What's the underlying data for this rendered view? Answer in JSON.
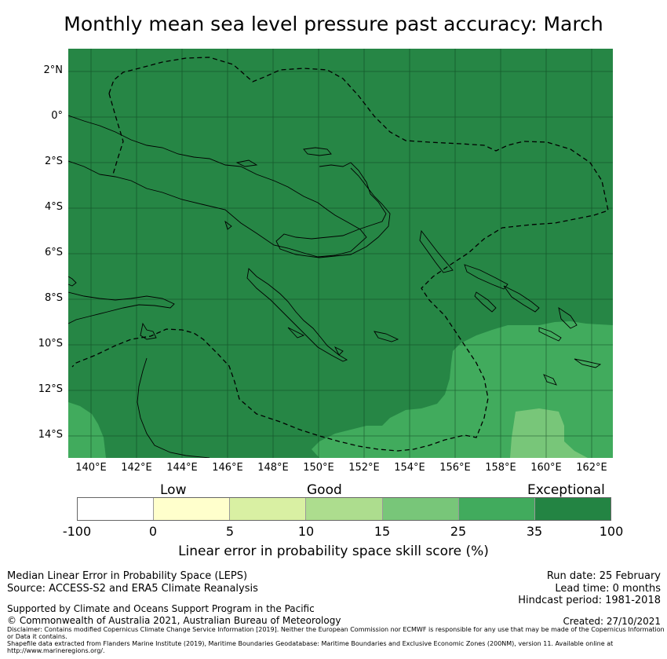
{
  "title": "Monthly mean sea level pressure past accuracy: March",
  "map": {
    "lat_labels": [
      "2°N",
      "0°",
      "2°S",
      "4°S",
      "6°S",
      "8°S",
      "10°S",
      "12°S",
      "14°S"
    ],
    "lon_labels": [
      "140°E",
      "142°E",
      "144°E",
      "146°E",
      "148°E",
      "150°E",
      "152°E",
      "154°E",
      "156°E",
      "158°E",
      "160°E",
      "162°E"
    ],
    "lon_range": [
      139.0,
      163.0
    ],
    "lat_range": [
      -15.0,
      3.0
    ],
    "colors": {
      "exceptional_dark": "#268645",
      "good_25_35": "#41ab5d",
      "good_15_25": "#78c679",
      "grid": "#0b3d1c"
    }
  },
  "colorbar": {
    "categories": [
      "Low",
      "Good",
      "Exceptional"
    ],
    "ticks": [
      "-100",
      "0",
      "5",
      "10",
      "15",
      "25",
      "35",
      "100"
    ],
    "colors": [
      "#ffffff",
      "#ffffcc",
      "#d9f0a3",
      "#addd8e",
      "#78c679",
      "#41ab5d",
      "#238443"
    ],
    "label": "Linear error in probability space skill score (%)"
  },
  "footer": {
    "left_line1": "Median Linear Error in Probability Space (LEPS)",
    "left_line2": "Source: ACCESS-S2 and ERA5 Climate Reanalysis",
    "right_line1": "Run date: 25 February",
    "right_line2": "Lead time: 0 months",
    "right_line3": "Hindcast period: 1981-2018",
    "supported": "Supported by Climate and Oceans Support Program in the Pacific",
    "copyright": "© Commonwealth of Australia 2021, Australian Bureau of Meteorology",
    "created": "Created: 27/10/2021",
    "disclaimer": "Disclaimer: Contains modified Copernicus Climate Change Service Information [2019]. Neither the European Commission nor ECMWF is responsible for any use that may be made of the Copernicus Information or Data it contains.",
    "shapefile": "Shapefile data extracted from Flanders Marine Institute (2019), Maritime Boundaries Geodatabase: Maritime Boundaries and Exclusive Economic Zones (200NM), version 11. Available online at http://www.marineregions.org/."
  }
}
